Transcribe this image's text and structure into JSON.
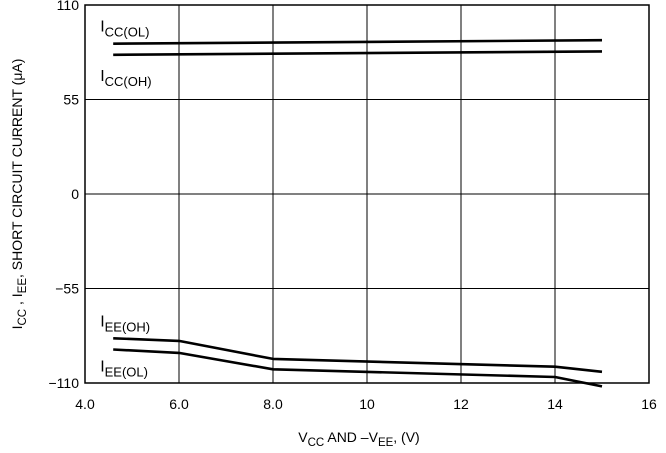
{
  "chart_data": {
    "type": "line",
    "xlabel": {
      "main": "V",
      "sub1": "CC",
      "mid": " AND –V",
      "sub2": "EE",
      "tail": ", (V)"
    },
    "ylabel": {
      "p1": "I",
      "s1": "CC",
      "p2": " , I",
      "s2": "EE",
      "p3": ",  SHORT CIRCUIT CURRENT (μA)"
    },
    "xlim": [
      4,
      16
    ],
    "ylim": [
      -110,
      110
    ],
    "x_ticks": [
      4,
      6,
      8,
      10,
      12,
      14,
      16
    ],
    "x_tick_labels": [
      "4.0",
      "6.0",
      "8.0",
      "10",
      "12",
      "14",
      "16"
    ],
    "y_ticks": [
      110,
      55,
      0,
      -55,
      -110
    ],
    "y_tick_labels": [
      "110",
      "55",
      "0",
      "−55",
      "−110"
    ],
    "grid": true,
    "series": [
      {
        "name": "I_CC(OL)",
        "label_main": "I",
        "label_sub": "CC(OL)",
        "x": [
          4.6,
          15.0
        ],
        "y": [
          87.5,
          89.5
        ]
      },
      {
        "name": "I_CC(OH)",
        "label_main": "I",
        "label_sub": "CC(OH)",
        "x": [
          4.6,
          15.0
        ],
        "y": [
          81.0,
          83.0
        ]
      },
      {
        "name": "I_EE(OH)",
        "label_main": "I",
        "label_sub": "EE(OH)",
        "x": [
          4.6,
          6.0,
          8.0,
          14.0,
          15.0
        ],
        "y": [
          -84.0,
          -85.5,
          -96.0,
          -100.5,
          -103.5
        ]
      },
      {
        "name": "I_EE(OL)",
        "label_main": "I",
        "label_sub": "EE(OL)",
        "x": [
          4.6,
          6.0,
          8.0,
          14.0,
          15.0
        ],
        "y": [
          -90.5,
          -92.5,
          -102.0,
          -106.5,
          -112.0
        ]
      }
    ]
  }
}
